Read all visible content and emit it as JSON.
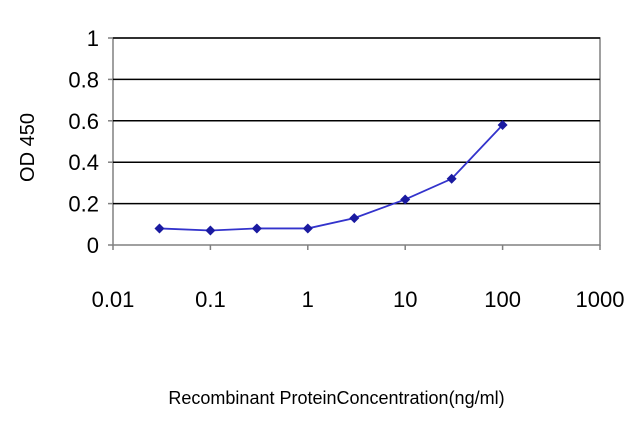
{
  "chart_data": {
    "type": "line",
    "title": "",
    "xlabel": "Recombinant ProteinConcentration(ng/ml)",
    "ylabel": "OD 450",
    "x_scale": "log",
    "xlim": [
      0.01,
      1000
    ],
    "ylim": [
      0,
      1
    ],
    "x_ticks": [
      0.01,
      0.1,
      1,
      10,
      100,
      1000
    ],
    "x_tick_labels": [
      "0.01",
      "0.1",
      "1",
      "10",
      "100",
      "1000"
    ],
    "y_ticks": [
      0,
      0.2,
      0.4,
      0.6,
      0.8,
      1
    ],
    "y_tick_labels": [
      "0",
      "0.2",
      "0.4",
      "0.6",
      "0.8",
      "1"
    ],
    "grid": "horizontal",
    "legend": "none",
    "series": [
      {
        "x": [
          0.03,
          0.1,
          0.3,
          1,
          3,
          10,
          30,
          100
        ],
        "y": [
          0.08,
          0.07,
          0.08,
          0.08,
          0.13,
          0.22,
          0.32,
          0.58
        ]
      }
    ],
    "colors": {
      "line": "#3333cc",
      "marker": "#1a1aa0",
      "plot_bg": "#ffffff",
      "grid": "#000000"
    }
  }
}
